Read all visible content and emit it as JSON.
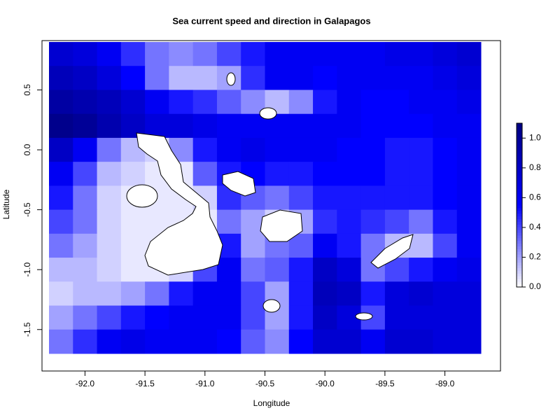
{
  "chart_data": {
    "type": "heatmap",
    "title": "Sea current speed and direction in Galapagos",
    "x_label": "Longitude",
    "y_label": "Latitude",
    "x": [
      -92.2,
      -92.0,
      -91.8,
      -91.6,
      -91.4,
      -91.2,
      -91.0,
      -90.8,
      -90.6,
      -90.4,
      -90.2,
      -90.0,
      -89.8,
      -89.6,
      -89.4,
      -89.2,
      -89.0,
      -88.8
    ],
    "y": [
      0.8,
      0.6,
      0.4,
      0.2,
      0.0,
      -0.2,
      -0.4,
      -0.6,
      -0.8,
      -1.0,
      -1.2,
      -1.4,
      -1.6
    ],
    "z": [
      [
        0.75,
        0.7,
        0.6,
        0.45,
        0.3,
        0.25,
        0.3,
        0.4,
        0.5,
        0.6,
        0.6,
        0.6,
        0.6,
        0.6,
        0.65,
        0.65,
        0.7,
        0.75
      ],
      [
        0.85,
        0.8,
        0.7,
        0.55,
        0.3,
        0.15,
        0.15,
        0.2,
        0.45,
        0.6,
        0.6,
        0.55,
        0.6,
        0.6,
        0.6,
        0.6,
        0.65,
        0.7
      ],
      [
        0.95,
        0.9,
        0.85,
        0.75,
        0.6,
        0.5,
        0.45,
        0.35,
        0.25,
        0.15,
        0.25,
        0.5,
        0.6,
        0.55,
        0.55,
        0.6,
        0.6,
        0.65
      ],
      [
        1.05,
        1.0,
        0.9,
        0.8,
        0.7,
        0.7,
        0.65,
        0.6,
        0.6,
        0.6,
        0.6,
        0.6,
        0.6,
        0.55,
        0.55,
        0.55,
        0.6,
        0.6
      ],
      [
        0.8,
        0.6,
        0.3,
        0.15,
        0.1,
        0.25,
        0.5,
        0.6,
        0.65,
        0.6,
        0.6,
        0.6,
        0.55,
        0.55,
        0.5,
        0.5,
        0.55,
        0.6
      ],
      [
        0.6,
        0.4,
        0.15,
        0.1,
        0.05,
        0.05,
        0.35,
        0.5,
        0.55,
        0.5,
        0.5,
        0.55,
        0.55,
        0.55,
        0.5,
        0.5,
        0.55,
        0.6
      ],
      [
        0.5,
        0.3,
        0.1,
        0.05,
        0.05,
        0.05,
        0.1,
        0.45,
        0.35,
        0.3,
        0.4,
        0.5,
        0.5,
        0.5,
        0.5,
        0.5,
        0.55,
        0.6
      ],
      [
        0.4,
        0.3,
        0.1,
        0.05,
        0.05,
        0.05,
        0.05,
        0.3,
        0.2,
        0.1,
        0.2,
        0.45,
        0.5,
        0.45,
        0.4,
        0.3,
        0.5,
        0.6
      ],
      [
        0.3,
        0.2,
        0.1,
        0.05,
        0.05,
        0.05,
        0.1,
        0.5,
        0.2,
        0.3,
        0.35,
        0.6,
        0.5,
        0.3,
        0.15,
        0.15,
        0.4,
        0.6
      ],
      [
        0.15,
        0.15,
        0.1,
        0.05,
        0.05,
        0.1,
        0.4,
        0.6,
        0.3,
        0.35,
        0.5,
        0.8,
        0.7,
        0.3,
        0.4,
        0.5,
        0.6,
        0.65
      ],
      [
        0.1,
        0.15,
        0.15,
        0.2,
        0.3,
        0.5,
        0.6,
        0.6,
        0.4,
        0.2,
        0.5,
        0.85,
        0.8,
        0.5,
        0.7,
        0.75,
        0.7,
        0.7
      ],
      [
        0.2,
        0.3,
        0.4,
        0.5,
        0.55,
        0.6,
        0.6,
        0.6,
        0.4,
        0.2,
        0.5,
        0.8,
        0.7,
        0.4,
        0.7,
        0.7,
        0.7,
        0.7
      ],
      [
        0.3,
        0.45,
        0.6,
        0.65,
        0.6,
        0.6,
        0.6,
        0.55,
        0.35,
        0.25,
        0.55,
        0.75,
        0.75,
        0.6,
        0.75,
        0.75,
        0.7,
        0.7
      ]
    ],
    "xlim": [
      -92.3,
      -88.7
    ],
    "ylim": [
      -1.7,
      0.9
    ],
    "xticks": [
      {
        "value": -92,
        "label": "-92.0"
      },
      -91.5,
      {
        "value": -91,
        "label": "-91.0"
      },
      -90.5,
      {
        "value": -90,
        "label": "-90.0"
      },
      -89.5,
      {
        "value": -89,
        "label": "-89.0"
      }
    ],
    "yticks": [
      0.5,
      {
        "value": 0,
        "label": "0.0"
      },
      -0.5,
      {
        "value": -1,
        "label": "-1.0"
      },
      -1.5
    ],
    "zlim": [
      0,
      1.1
    ],
    "zticks": [
      {
        "value": 0,
        "label": "0.0"
      },
      0.2,
      0.4,
      0.6,
      0.8,
      {
        "value": 1,
        "label": "1.0"
      }
    ],
    "colors": [
      "#ffffff",
      "#0000ff",
      "#000080"
    ]
  }
}
